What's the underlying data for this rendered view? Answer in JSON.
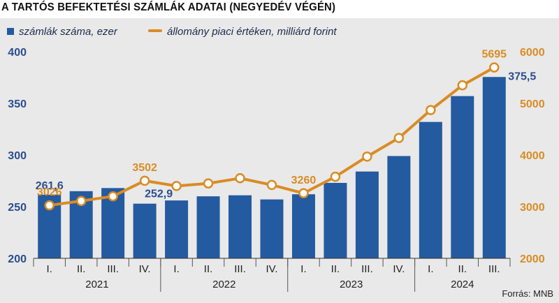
{
  "title": "A TARTÓS BEFEKTETÉSI SZÁMLÁK ADATAI (NEGYEDÉV VÉGÉN)",
  "source": "Forrás: MNB",
  "colors": {
    "bar": "#245aa0",
    "line": "#d98c24",
    "background": "#e9e9e9",
    "left_axis_text": "#2a4d8f",
    "right_axis_text": "#d98c24"
  },
  "chart_data": {
    "type": "bar+line",
    "title": "A TARTÓS BEFEKTETÉSI SZÁMLÁK ADATAI (NEGYEDÉV VÉGÉN)",
    "categories": [
      "I.",
      "II.",
      "III.",
      "IV.",
      "I.",
      "II.",
      "III.",
      "IV.",
      "I.",
      "II.",
      "III.",
      "IV.",
      "I.",
      "II.",
      "III."
    ],
    "years": [
      {
        "label": "2021",
        "quarters": 4
      },
      {
        "label": "2022",
        "quarters": 4
      },
      {
        "label": "2023",
        "quarters": 4
      },
      {
        "label": "2024",
        "quarters": 3
      }
    ],
    "series": [
      {
        "name": "számlák száma, ezer",
        "type": "bar",
        "axis": "left",
        "values": [
          261.6,
          265,
          268,
          252.9,
          256,
          260,
          261,
          257,
          262,
          273,
          284,
          299,
          332,
          357,
          375.5
        ],
        "labels": {
          "0": "261,6",
          "3": "252,9",
          "14": "375,5"
        }
      },
      {
        "name": "állomány piaci értéken, milliárd forint",
        "type": "line",
        "axis": "right",
        "values": [
          3026,
          3110,
          3200,
          3502,
          3400,
          3450,
          3550,
          3420,
          3260,
          3580,
          3970,
          4330,
          4870,
          5350,
          5695
        ],
        "labels": {
          "0": "3026",
          "3": "3502",
          "8": "3260",
          "14": "5695"
        }
      }
    ],
    "y_left": {
      "min": 200,
      "max": 400,
      "ticks": [
        200,
        250,
        300,
        350,
        400
      ]
    },
    "y_right": {
      "min": 2000,
      "max": 6000,
      "ticks": [
        2000,
        3000,
        4000,
        5000,
        6000
      ]
    },
    "legend_position": "top-left",
    "grid": false
  }
}
